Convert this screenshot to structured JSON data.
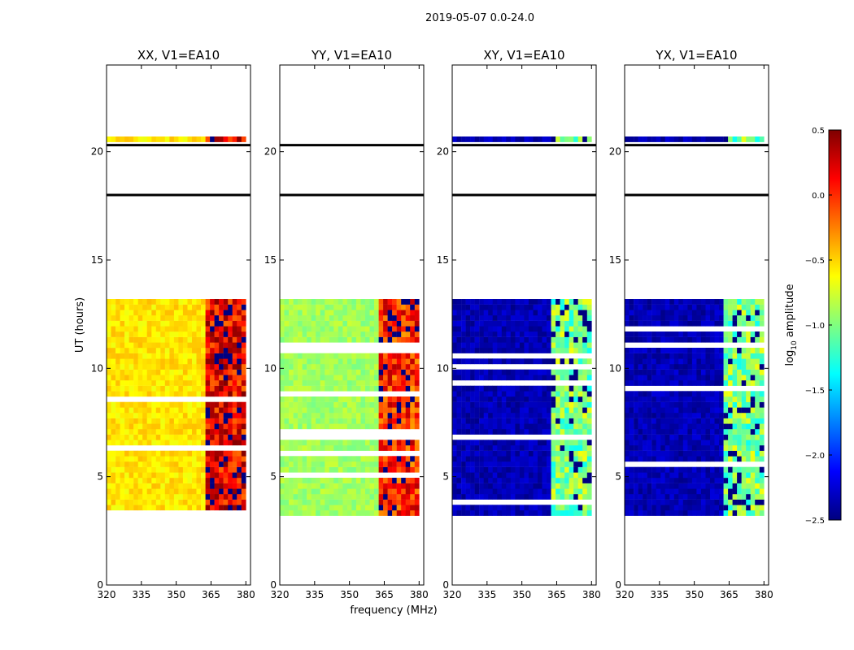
{
  "figure_title": "2019-05-07 0.0-24.0",
  "colorbar": {
    "label_prefix": "log",
    "label_sub": "10",
    "label_suffix": " amplitude",
    "range": [
      -2.5,
      0.5
    ],
    "ticks": [
      "0.5",
      "0.0",
      "−0.5",
      "−1.0",
      "−1.5",
      "−2.0",
      "−2.5"
    ],
    "tick_values": [
      0.5,
      0.0,
      -0.5,
      -1.0,
      -1.5,
      -2.0,
      -2.5
    ],
    "colormap": "jet"
  },
  "chart_data": {
    "type": "heatmap",
    "xlabel": "frequency (MHz)",
    "ylabel": "UT (hours)",
    "xlim": [
      320,
      382
    ],
    "ylim": [
      0,
      24
    ],
    "x_ticks": [
      320,
      335,
      350,
      365,
      380
    ],
    "y_ticks": [
      0,
      5,
      10,
      15,
      20
    ],
    "x_tick_labels": [
      "320",
      "335",
      "350",
      "365",
      "380"
    ],
    "y_tick_labels": [
      "0",
      "5",
      "10",
      "15",
      "20"
    ],
    "data_time_range_hours": [
      3.2,
      20.7
    ],
    "flag_gaps_hours": [
      [
        13.0,
        20.3
      ]
    ],
    "rfi_band_mhz": [
      362,
      379
    ],
    "panels": [
      {
        "title": "XX, V1=EA10",
        "base_log_amp": -0.55,
        "rfi_log_amp": 0.15
      },
      {
        "title": "YY, V1=EA10",
        "base_log_amp": -0.9,
        "rfi_log_amp": 0.0
      },
      {
        "title": "XY, V1=EA10",
        "base_log_amp": -2.35,
        "rfi_log_amp": -1.0
      },
      {
        "title": "YX, V1=EA10",
        "base_log_amp": -2.35,
        "rfi_log_amp": -1.0
      }
    ]
  }
}
